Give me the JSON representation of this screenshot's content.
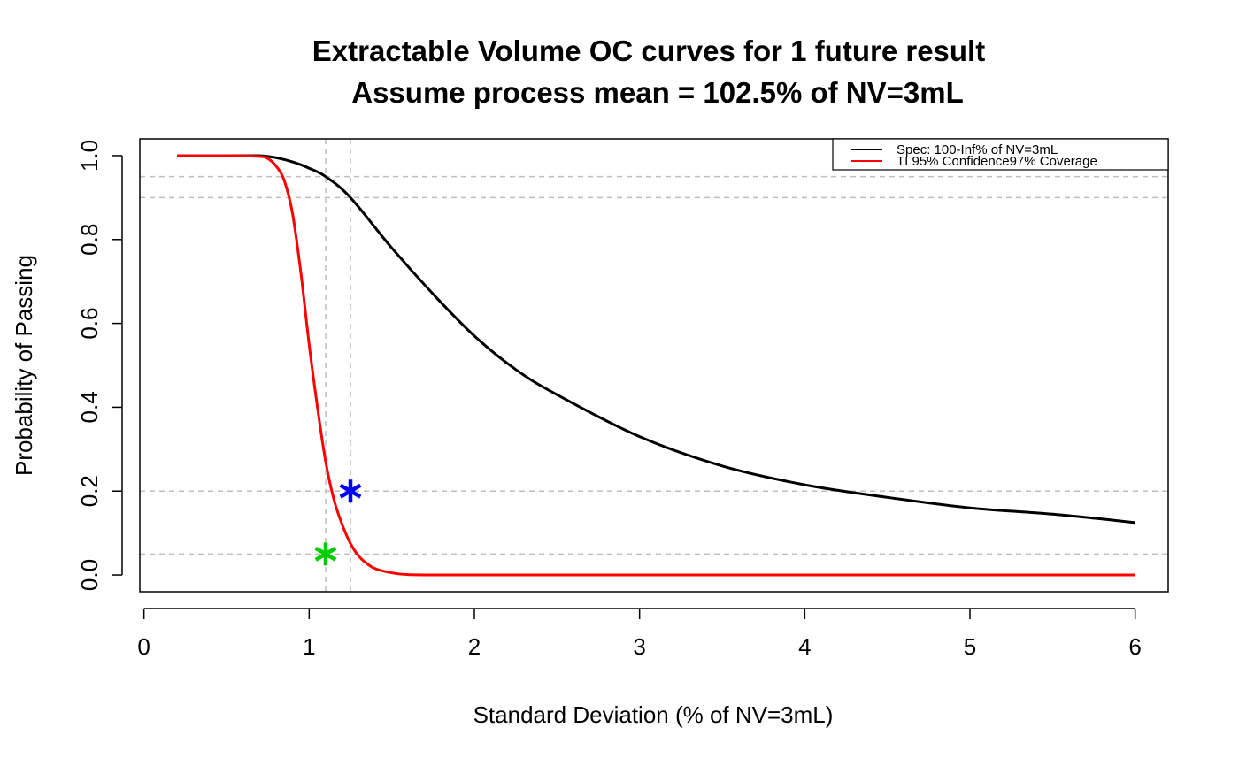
{
  "chart_data": {
    "type": "line",
    "title_line1": "Extractable Volume OC curves for 1 future result",
    "title_line2": "Assume process mean = 102.5% of NV=3mL",
    "xlabel": "Standard Deviation (% of NV=3mL)",
    "ylabel": "Probability of Passing",
    "xlim": [
      -0.025,
      6.2
    ],
    "ylim": [
      -0.04,
      1.04
    ],
    "x_ticks": [
      "0",
      "1",
      "2",
      "3",
      "4",
      "5",
      "6"
    ],
    "y_ticks": [
      "0.0",
      "0.2",
      "0.4",
      "0.6",
      "0.8",
      "1.0"
    ],
    "legend": {
      "position": "top-right",
      "entries": [
        {
          "label": "Spec: 100-Inf% of NV=3mL",
          "color": "#000000"
        },
        {
          "label": "TI 95% Confidence97% Coverage",
          "color": "#ff0000"
        }
      ]
    },
    "reference_lines": {
      "horizontal": [
        0.95,
        0.9,
        0.2,
        0.05
      ],
      "vertical": [
        1.1,
        1.25
      ],
      "color": "#bebebe"
    },
    "series": [
      {
        "name": "Spec: 100-Inf% of NV=3mL",
        "color": "#000000",
        "x": [
          0.2,
          0.5,
          0.7,
          0.8,
          0.9,
          1.0,
          1.1,
          1.25,
          1.5,
          1.75,
          2.0,
          2.25,
          2.5,
          3.0,
          3.5,
          4.0,
          4.5,
          5.0,
          5.5,
          6.0
        ],
        "y": [
          1.0,
          1.0,
          1.0,
          0.995,
          0.985,
          0.97,
          0.95,
          0.9,
          0.78,
          0.67,
          0.57,
          0.49,
          0.43,
          0.33,
          0.26,
          0.215,
          0.185,
          0.16,
          0.145,
          0.125
        ]
      },
      {
        "name": "TI 95% Confidence97% Coverage",
        "color": "#ff0000",
        "x": [
          0.2,
          0.5,
          0.7,
          0.75,
          0.8,
          0.85,
          0.9,
          0.95,
          1.0,
          1.05,
          1.1,
          1.15,
          1.2,
          1.25,
          1.3,
          1.35,
          1.4,
          1.5,
          1.6,
          1.8,
          2.5,
          3.0,
          4.0,
          5.0,
          6.0
        ],
        "y": [
          1.0,
          1.0,
          0.998,
          0.993,
          0.975,
          0.94,
          0.86,
          0.72,
          0.55,
          0.4,
          0.27,
          0.18,
          0.12,
          0.075,
          0.045,
          0.027,
          0.015,
          0.005,
          0.001,
          0.0,
          0.0,
          0.0,
          0.0,
          0.0,
          0.0
        ]
      }
    ],
    "markers": [
      {
        "x": 1.25,
        "y": 0.2,
        "color": "#0000ff",
        "symbol": "*"
      },
      {
        "x": 1.1,
        "y": 0.05,
        "color": "#00cd00",
        "symbol": "*"
      }
    ]
  }
}
